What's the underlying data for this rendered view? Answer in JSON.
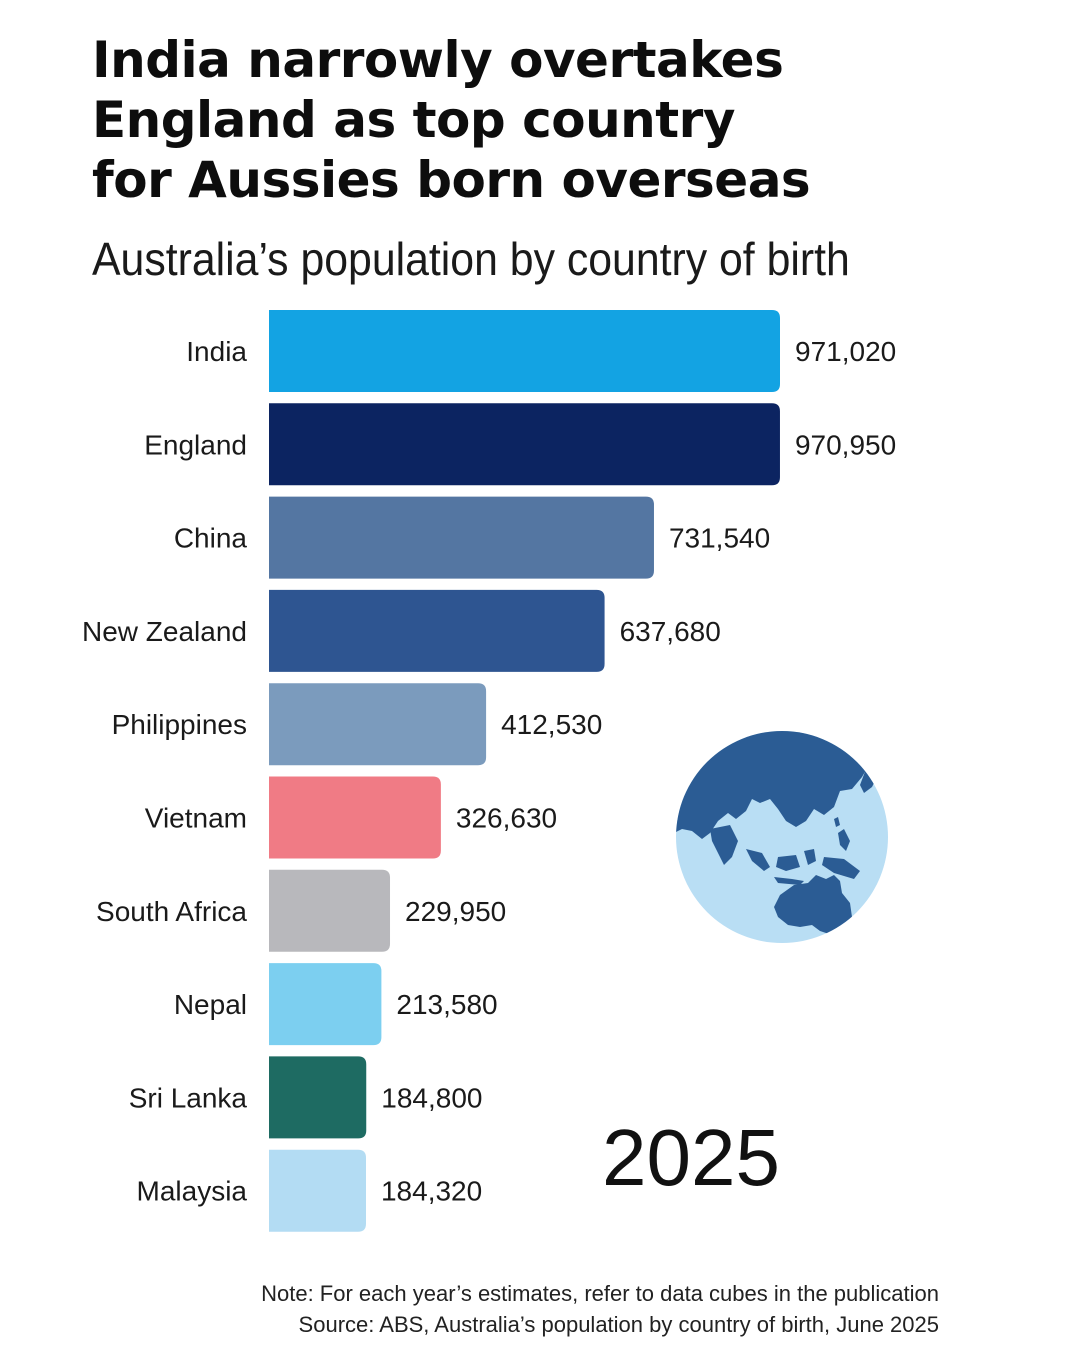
{
  "header": {
    "title_lines": [
      "India narrowly overtakes",
      "England as top country",
      "for Aussies born overseas"
    ],
    "subtitle": "Australia’s population by country of birth"
  },
  "year": "2025",
  "footnote": {
    "note": "Note: For each year’s estimates, refer to data cubes in the publication",
    "source": "Source: ABS, Australia’s population by country of birth, June 2025"
  },
  "globe_icon": "globe-asia-australia-icon",
  "chart_data": {
    "type": "bar",
    "orientation": "horizontal",
    "title": "India narrowly overtakes England as top country for Aussies born overseas",
    "subtitle": "Australia’s population by country of birth",
    "xlabel": "",
    "ylabel": "",
    "grid": false,
    "categories": [
      "India",
      "England",
      "China",
      "New Zealand",
      "Philippines",
      "Vietnam",
      "South Africa",
      "Nepal",
      "Sri Lanka",
      "Malaysia"
    ],
    "values": [
      971020,
      970950,
      731540,
      637680,
      412530,
      326630,
      229950,
      213580,
      184800,
      184320
    ],
    "value_labels": [
      "971,020",
      "970,950",
      "731,540",
      "637,680",
      "412,530",
      "326,630",
      "229,950",
      "213,580",
      "184,800",
      "184,320"
    ],
    "colors": [
      "#13a3e3",
      "#0c2461",
      "#5476a2",
      "#2e5591",
      "#7b9bbd",
      "#f07b85",
      "#b8b8bc",
      "#7ccff0",
      "#1e6b62",
      "#b3dcf3"
    ],
    "xlim": [
      0,
      971020
    ]
  }
}
